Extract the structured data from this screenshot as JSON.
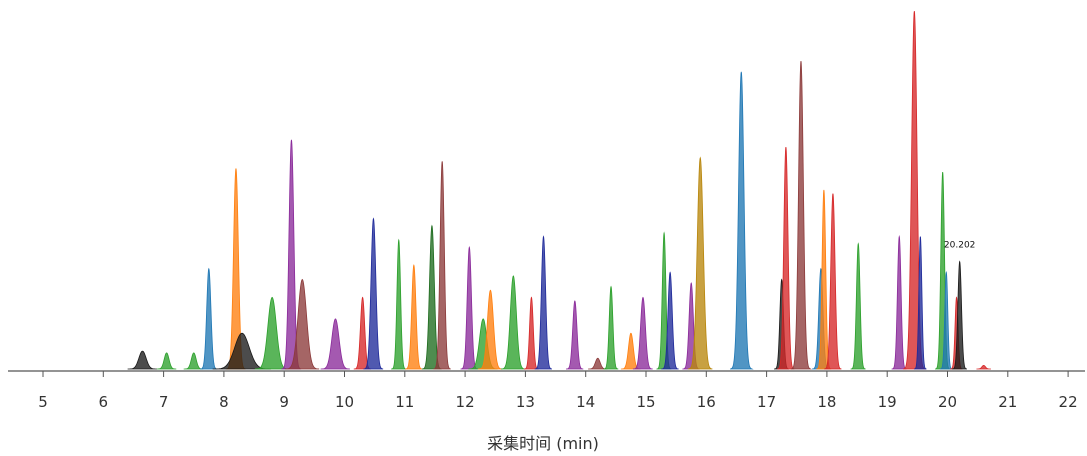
{
  "chart_data": {
    "type": "area",
    "title": "",
    "xlabel": "采集时间 (min)",
    "ylabel": "",
    "xlim": [
      4.6,
      22.2
    ],
    "ylim": [
      0,
      1
    ],
    "grid": false,
    "x_ticks": [
      5,
      6,
      7,
      8,
      9,
      10,
      11,
      12,
      13,
      14,
      15,
      16,
      17,
      18,
      19,
      20,
      21,
      22
    ],
    "annotations": [
      {
        "text": "20.202",
        "x": 20.202
      }
    ],
    "colors": {
      "black": "#1a1a1a",
      "green": "#2ca02c",
      "blue": "#1f77b4",
      "orange": "#ff7f0e",
      "purple": "#8a2a9a",
      "red": "#d62728",
      "brown": "#8c3a3a",
      "navy": "#1f2a9a",
      "darkgreen": "#1e6b1e",
      "gold": "#b8860b"
    },
    "peaks": [
      {
        "rt": 6.65,
        "height": 0.05,
        "width": 0.06,
        "color": "black"
      },
      {
        "rt": 7.05,
        "height": 0.045,
        "width": 0.04,
        "color": "green"
      },
      {
        "rt": 7.5,
        "height": 0.045,
        "width": 0.04,
        "color": "green"
      },
      {
        "rt": 7.75,
        "height": 0.28,
        "width": 0.035,
        "color": "blue"
      },
      {
        "rt": 8.2,
        "height": 0.56,
        "width": 0.04,
        "color": "orange"
      },
      {
        "rt": 8.3,
        "height": 0.1,
        "width": 0.12,
        "color": "black"
      },
      {
        "rt": 8.8,
        "height": 0.2,
        "width": 0.07,
        "color": "green"
      },
      {
        "rt": 9.12,
        "height": 0.64,
        "width": 0.04,
        "color": "purple"
      },
      {
        "rt": 9.3,
        "height": 0.25,
        "width": 0.07,
        "color": "brown"
      },
      {
        "rt": 9.85,
        "height": 0.14,
        "width": 0.06,
        "color": "purple"
      },
      {
        "rt": 10.3,
        "height": 0.2,
        "width": 0.035,
        "color": "red"
      },
      {
        "rt": 10.48,
        "height": 0.42,
        "width": 0.04,
        "color": "navy"
      },
      {
        "rt": 10.9,
        "height": 0.36,
        "width": 0.03,
        "color": "green"
      },
      {
        "rt": 11.15,
        "height": 0.29,
        "width": 0.035,
        "color": "orange"
      },
      {
        "rt": 11.45,
        "height": 0.4,
        "width": 0.04,
        "color": "darkgreen"
      },
      {
        "rt": 11.62,
        "height": 0.58,
        "width": 0.035,
        "color": "brown"
      },
      {
        "rt": 12.07,
        "height": 0.34,
        "width": 0.035,
        "color": "purple"
      },
      {
        "rt": 12.3,
        "height": 0.14,
        "width": 0.06,
        "color": "green"
      },
      {
        "rt": 12.42,
        "height": 0.22,
        "width": 0.05,
        "color": "orange"
      },
      {
        "rt": 12.8,
        "height": 0.26,
        "width": 0.05,
        "color": "green"
      },
      {
        "rt": 13.1,
        "height": 0.2,
        "width": 0.03,
        "color": "red"
      },
      {
        "rt": 13.3,
        "height": 0.37,
        "width": 0.035,
        "color": "navy"
      },
      {
        "rt": 13.82,
        "height": 0.19,
        "width": 0.035,
        "color": "purple"
      },
      {
        "rt": 14.2,
        "height": 0.03,
        "width": 0.04,
        "color": "brown"
      },
      {
        "rt": 14.42,
        "height": 0.23,
        "width": 0.03,
        "color": "green"
      },
      {
        "rt": 14.75,
        "height": 0.1,
        "width": 0.04,
        "color": "orange"
      },
      {
        "rt": 14.95,
        "height": 0.2,
        "width": 0.04,
        "color": "purple"
      },
      {
        "rt": 15.3,
        "height": 0.38,
        "width": 0.03,
        "color": "green"
      },
      {
        "rt": 15.4,
        "height": 0.27,
        "width": 0.035,
        "color": "navy"
      },
      {
        "rt": 15.75,
        "height": 0.24,
        "width": 0.035,
        "color": "purple"
      },
      {
        "rt": 15.9,
        "height": 0.59,
        "width": 0.05,
        "color": "gold"
      },
      {
        "rt": 16.58,
        "height": 0.83,
        "width": 0.045,
        "color": "blue"
      },
      {
        "rt": 17.25,
        "height": 0.25,
        "width": 0.03,
        "color": "black"
      },
      {
        "rt": 17.32,
        "height": 0.62,
        "width": 0.035,
        "color": "red"
      },
      {
        "rt": 17.57,
        "height": 0.86,
        "width": 0.04,
        "color": "brown"
      },
      {
        "rt": 17.9,
        "height": 0.28,
        "width": 0.035,
        "color": "blue"
      },
      {
        "rt": 17.95,
        "height": 0.5,
        "width": 0.03,
        "color": "orange"
      },
      {
        "rt": 18.1,
        "height": 0.49,
        "width": 0.035,
        "color": "red"
      },
      {
        "rt": 18.52,
        "height": 0.35,
        "width": 0.03,
        "color": "green"
      },
      {
        "rt": 19.2,
        "height": 0.37,
        "width": 0.03,
        "color": "purple"
      },
      {
        "rt": 19.45,
        "height": 1.0,
        "width": 0.045,
        "color": "red"
      },
      {
        "rt": 19.55,
        "height": 0.37,
        "width": 0.025,
        "color": "navy"
      },
      {
        "rt": 19.92,
        "height": 0.55,
        "width": 0.03,
        "color": "green"
      },
      {
        "rt": 19.98,
        "height": 0.27,
        "width": 0.025,
        "color": "blue"
      },
      {
        "rt": 20.15,
        "height": 0.2,
        "width": 0.025,
        "color": "red"
      },
      {
        "rt": 20.202,
        "height": 0.3,
        "width": 0.03,
        "color": "black"
      },
      {
        "rt": 20.6,
        "height": 0.01,
        "width": 0.03,
        "color": "red"
      }
    ]
  }
}
